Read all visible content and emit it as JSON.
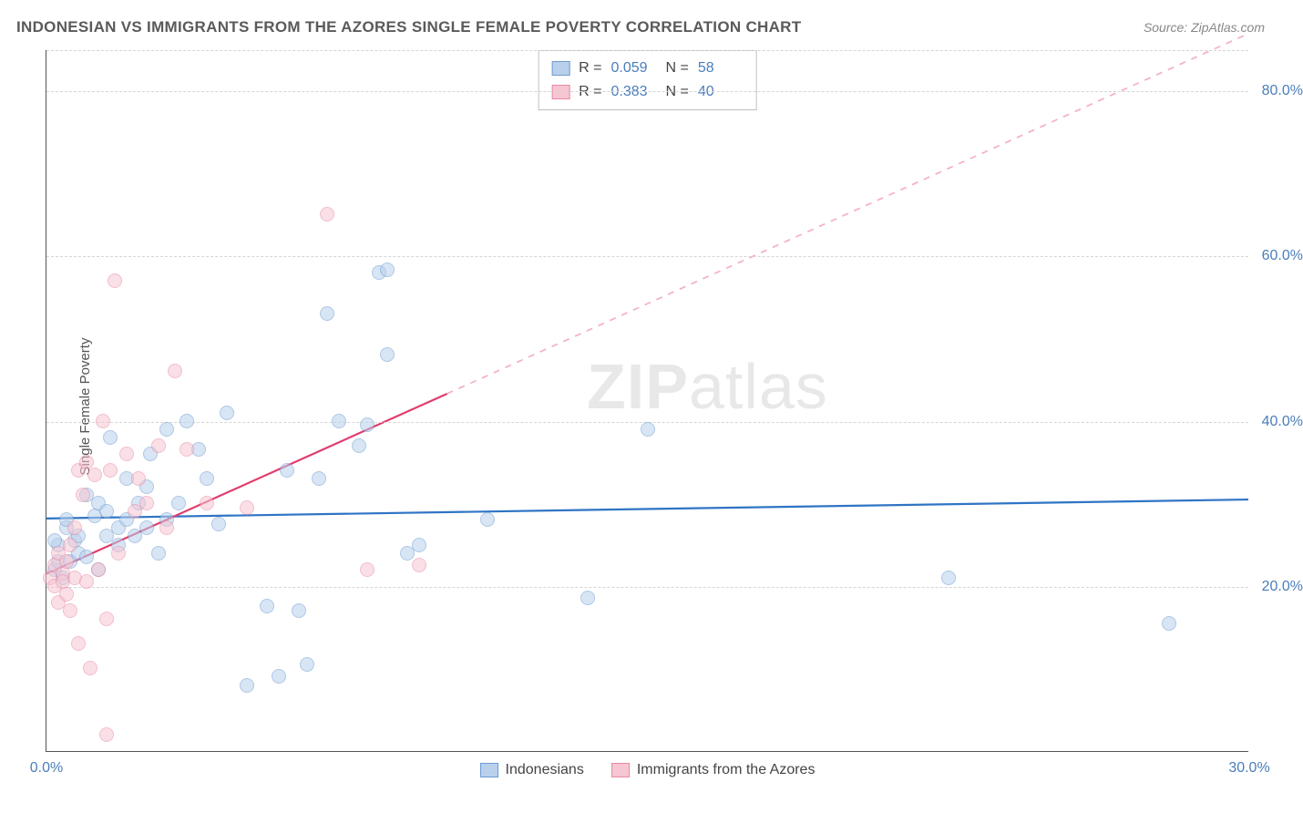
{
  "title": "INDONESIAN VS IMMIGRANTS FROM THE AZORES SINGLE FEMALE POVERTY CORRELATION CHART",
  "source": "Source: ZipAtlas.com",
  "y_axis_label": "Single Female Poverty",
  "watermark_bold": "ZIP",
  "watermark_light": "atlas",
  "chart": {
    "type": "scatter",
    "background_color": "#ffffff",
    "grid_color": "#d5d5d5",
    "axis_color": "#555555",
    "tick_color": "#4a7ebb",
    "xlim": [
      0,
      30
    ],
    "ylim": [
      0,
      85
    ],
    "x_ticks": [
      0.0,
      30.0
    ],
    "x_tick_labels": [
      "0.0%",
      "30.0%"
    ],
    "y_ticks": [
      20.0,
      40.0,
      60.0,
      80.0
    ],
    "y_tick_labels": [
      "20.0%",
      "40.0%",
      "60.0%",
      "80.0%"
    ],
    "marker_radius": 8,
    "marker_stroke_width": 1.2,
    "series": [
      {
        "name": "Indonesians",
        "fill": "#b9d0ec",
        "stroke": "#6c9bd1",
        "fill_opacity": 0.55,
        "R": "0.059",
        "N": "58",
        "trend": {
          "solid_until_x": 30,
          "y0": 28.2,
          "y30": 30.5,
          "color": "#2f74c5",
          "width": 2.2,
          "dash_color": "#2f74c5"
        },
        "points": [
          [
            0.2,
            22
          ],
          [
            0.3,
            23
          ],
          [
            0.3,
            25
          ],
          [
            0.4,
            21
          ],
          [
            0.5,
            27
          ],
          [
            0.5,
            28
          ],
          [
            0.6,
            23
          ],
          [
            0.7,
            25.5
          ],
          [
            0.8,
            24
          ],
          [
            0.8,
            26
          ],
          [
            1.0,
            31
          ],
          [
            1.0,
            23.5
          ],
          [
            1.2,
            28.5
          ],
          [
            1.3,
            30
          ],
          [
            1.3,
            22
          ],
          [
            1.5,
            29
          ],
          [
            1.5,
            26
          ],
          [
            1.6,
            38
          ],
          [
            1.8,
            27
          ],
          [
            1.8,
            25
          ],
          [
            2.0,
            33
          ],
          [
            2.0,
            28
          ],
          [
            2.2,
            26
          ],
          [
            2.3,
            30
          ],
          [
            2.5,
            27
          ],
          [
            2.5,
            32
          ],
          [
            2.6,
            36
          ],
          [
            2.8,
            24
          ],
          [
            3.0,
            39
          ],
          [
            3.0,
            28
          ],
          [
            3.3,
            30
          ],
          [
            3.5,
            40
          ],
          [
            3.8,
            36.5
          ],
          [
            4.0,
            33
          ],
          [
            4.3,
            27.5
          ],
          [
            4.5,
            41
          ],
          [
            5.0,
            8
          ],
          [
            5.5,
            17.5
          ],
          [
            5.8,
            9
          ],
          [
            6.0,
            34
          ],
          [
            6.3,
            17
          ],
          [
            6.5,
            10.5
          ],
          [
            6.8,
            33
          ],
          [
            7.0,
            53
          ],
          [
            7.3,
            40
          ],
          [
            7.8,
            37
          ],
          [
            8.0,
            39.5
          ],
          [
            8.3,
            58
          ],
          [
            8.5,
            58.3
          ],
          [
            8.5,
            48
          ],
          [
            9.0,
            24
          ],
          [
            9.3,
            25
          ],
          [
            11.0,
            28
          ],
          [
            13.5,
            18.5
          ],
          [
            15.0,
            39
          ],
          [
            22.5,
            21
          ],
          [
            28.0,
            15.5
          ],
          [
            0.2,
            25.5
          ]
        ]
      },
      {
        "name": "Immigrants from the Azores",
        "fill": "#f6c6d2",
        "stroke": "#e88aa3",
        "fill_opacity": 0.55,
        "R": "0.383",
        "N": "40",
        "trend": {
          "solid_until_x": 10,
          "y0": 21.5,
          "y30": 87,
          "color": "#e13d6d",
          "width": 2.2,
          "dash_color": "#f4b2c3"
        },
        "points": [
          [
            0.1,
            21
          ],
          [
            0.2,
            20
          ],
          [
            0.2,
            22.5
          ],
          [
            0.3,
            18
          ],
          [
            0.3,
            24
          ],
          [
            0.4,
            21.5
          ],
          [
            0.4,
            20.5
          ],
          [
            0.5,
            23
          ],
          [
            0.5,
            19
          ],
          [
            0.6,
            25
          ],
          [
            0.6,
            17
          ],
          [
            0.7,
            27
          ],
          [
            0.7,
            21
          ],
          [
            0.8,
            34
          ],
          [
            0.8,
            13
          ],
          [
            0.9,
            31
          ],
          [
            1.0,
            20.5
          ],
          [
            1.0,
            35
          ],
          [
            1.1,
            10
          ],
          [
            1.2,
            33.5
          ],
          [
            1.3,
            22
          ],
          [
            1.4,
            40
          ],
          [
            1.5,
            16
          ],
          [
            1.5,
            2
          ],
          [
            1.6,
            34
          ],
          [
            1.7,
            57
          ],
          [
            1.8,
            24
          ],
          [
            2.0,
            36
          ],
          [
            2.2,
            29
          ],
          [
            2.3,
            33
          ],
          [
            2.5,
            30
          ],
          [
            2.8,
            37
          ],
          [
            3.0,
            27
          ],
          [
            3.2,
            46
          ],
          [
            3.5,
            36.5
          ],
          [
            4.0,
            30
          ],
          [
            5.0,
            29.5
          ],
          [
            7.0,
            65
          ],
          [
            8.0,
            22
          ],
          [
            9.3,
            22.5
          ]
        ]
      }
    ],
    "legend_labels": {
      "s1": "Indonesians",
      "s2": "Immigrants from the Azores"
    },
    "stats_labels": {
      "R": "R =",
      "N": "N ="
    }
  }
}
